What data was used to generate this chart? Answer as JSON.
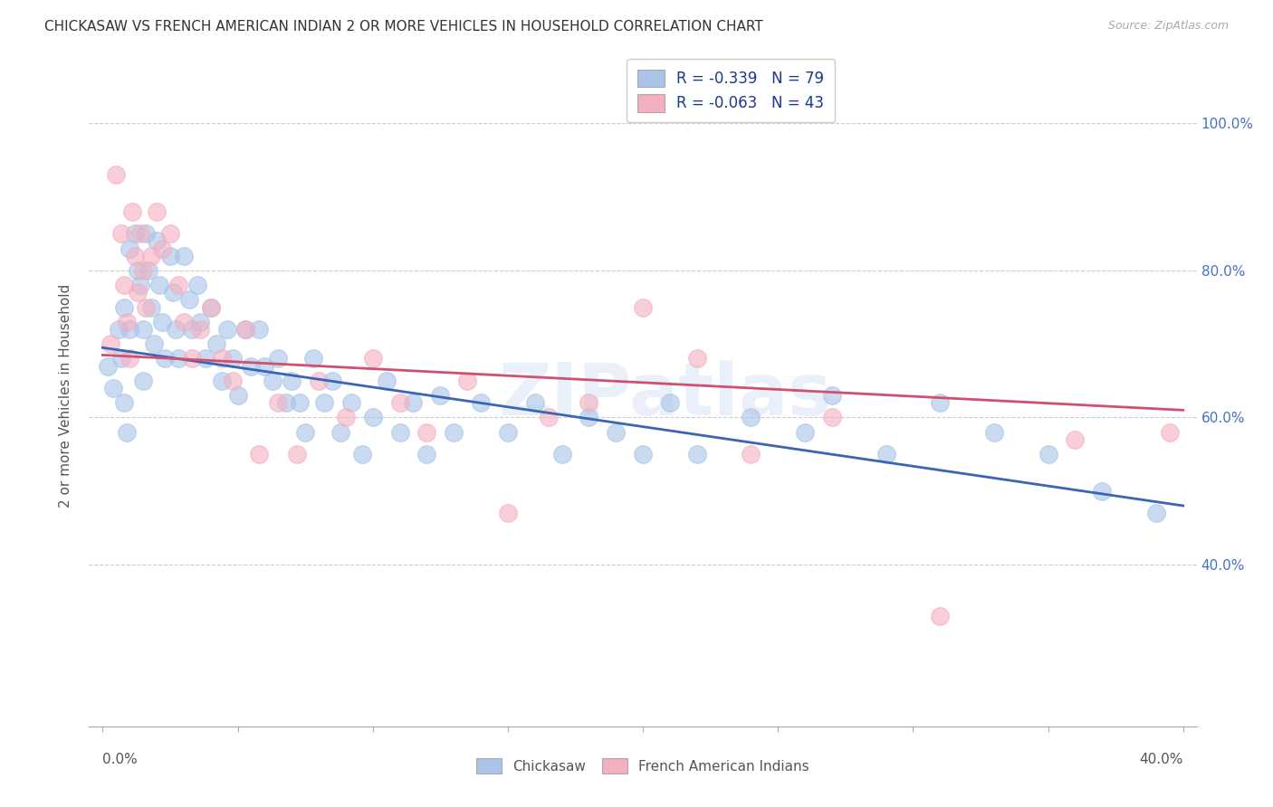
{
  "title": "CHICKASAW VS FRENCH AMERICAN INDIAN 2 OR MORE VEHICLES IN HOUSEHOLD CORRELATION CHART",
  "source": "Source: ZipAtlas.com",
  "ylabel": "2 or more Vehicles in Household",
  "ytick_labels": [
    "40.0%",
    "60.0%",
    "80.0%",
    "100.0%"
  ],
  "ytick_values": [
    0.4,
    0.6,
    0.8,
    1.0
  ],
  "xlim": [
    -0.005,
    0.405
  ],
  "ylim": [
    0.18,
    1.08
  ],
  "legend_blue_label": "R = -0.339   N = 79",
  "legend_pink_label": "R = -0.063   N = 43",
  "legend_chickasaw": "Chickasaw",
  "legend_french": "French American Indians",
  "blue_color": "#a8c4e8",
  "pink_color": "#f4afc0",
  "blue_line_color": "#3a65b5",
  "pink_line_color": "#d05070",
  "watermark": "ZIPatlas",
  "blue_scatter_x": [
    0.002,
    0.004,
    0.006,
    0.007,
    0.008,
    0.008,
    0.009,
    0.01,
    0.01,
    0.012,
    0.013,
    0.014,
    0.015,
    0.015,
    0.016,
    0.017,
    0.018,
    0.019,
    0.02,
    0.021,
    0.022,
    0.023,
    0.025,
    0.026,
    0.027,
    0.028,
    0.03,
    0.032,
    0.033,
    0.035,
    0.036,
    0.038,
    0.04,
    0.042,
    0.044,
    0.046,
    0.048,
    0.05,
    0.053,
    0.055,
    0.058,
    0.06,
    0.063,
    0.065,
    0.068,
    0.07,
    0.073,
    0.075,
    0.078,
    0.082,
    0.085,
    0.088,
    0.092,
    0.096,
    0.1,
    0.105,
    0.11,
    0.115,
    0.12,
    0.125,
    0.13,
    0.14,
    0.15,
    0.16,
    0.17,
    0.18,
    0.19,
    0.2,
    0.21,
    0.22,
    0.24,
    0.26,
    0.27,
    0.29,
    0.31,
    0.33,
    0.35,
    0.37,
    0.39
  ],
  "blue_scatter_y": [
    0.67,
    0.64,
    0.72,
    0.68,
    0.75,
    0.62,
    0.58,
    0.83,
    0.72,
    0.85,
    0.8,
    0.78,
    0.72,
    0.65,
    0.85,
    0.8,
    0.75,
    0.7,
    0.84,
    0.78,
    0.73,
    0.68,
    0.82,
    0.77,
    0.72,
    0.68,
    0.82,
    0.76,
    0.72,
    0.78,
    0.73,
    0.68,
    0.75,
    0.7,
    0.65,
    0.72,
    0.68,
    0.63,
    0.72,
    0.67,
    0.72,
    0.67,
    0.65,
    0.68,
    0.62,
    0.65,
    0.62,
    0.58,
    0.68,
    0.62,
    0.65,
    0.58,
    0.62,
    0.55,
    0.6,
    0.65,
    0.58,
    0.62,
    0.55,
    0.63,
    0.58,
    0.62,
    0.58,
    0.62,
    0.55,
    0.6,
    0.58,
    0.55,
    0.62,
    0.55,
    0.6,
    0.58,
    0.63,
    0.55,
    0.62,
    0.58,
    0.55,
    0.5,
    0.47
  ],
  "pink_scatter_x": [
    0.003,
    0.005,
    0.007,
    0.008,
    0.009,
    0.01,
    0.011,
    0.012,
    0.013,
    0.014,
    0.015,
    0.016,
    0.018,
    0.02,
    0.022,
    0.025,
    0.028,
    0.03,
    0.033,
    0.036,
    0.04,
    0.044,
    0.048,
    0.053,
    0.058,
    0.065,
    0.072,
    0.08,
    0.09,
    0.1,
    0.11,
    0.12,
    0.135,
    0.15,
    0.165,
    0.18,
    0.2,
    0.22,
    0.24,
    0.27,
    0.31,
    0.36,
    0.395
  ],
  "pink_scatter_y": [
    0.7,
    0.93,
    0.85,
    0.78,
    0.73,
    0.68,
    0.88,
    0.82,
    0.77,
    0.85,
    0.8,
    0.75,
    0.82,
    0.88,
    0.83,
    0.85,
    0.78,
    0.73,
    0.68,
    0.72,
    0.75,
    0.68,
    0.65,
    0.72,
    0.55,
    0.62,
    0.55,
    0.65,
    0.6,
    0.68,
    0.62,
    0.58,
    0.65,
    0.47,
    0.6,
    0.62,
    0.75,
    0.68,
    0.55,
    0.6,
    0.33,
    0.57,
    0.58
  ],
  "blue_line_x": [
    0.0,
    0.4
  ],
  "blue_line_y": [
    0.695,
    0.48
  ],
  "pink_line_x": [
    0.0,
    0.4
  ],
  "pink_line_y": [
    0.685,
    0.61
  ]
}
